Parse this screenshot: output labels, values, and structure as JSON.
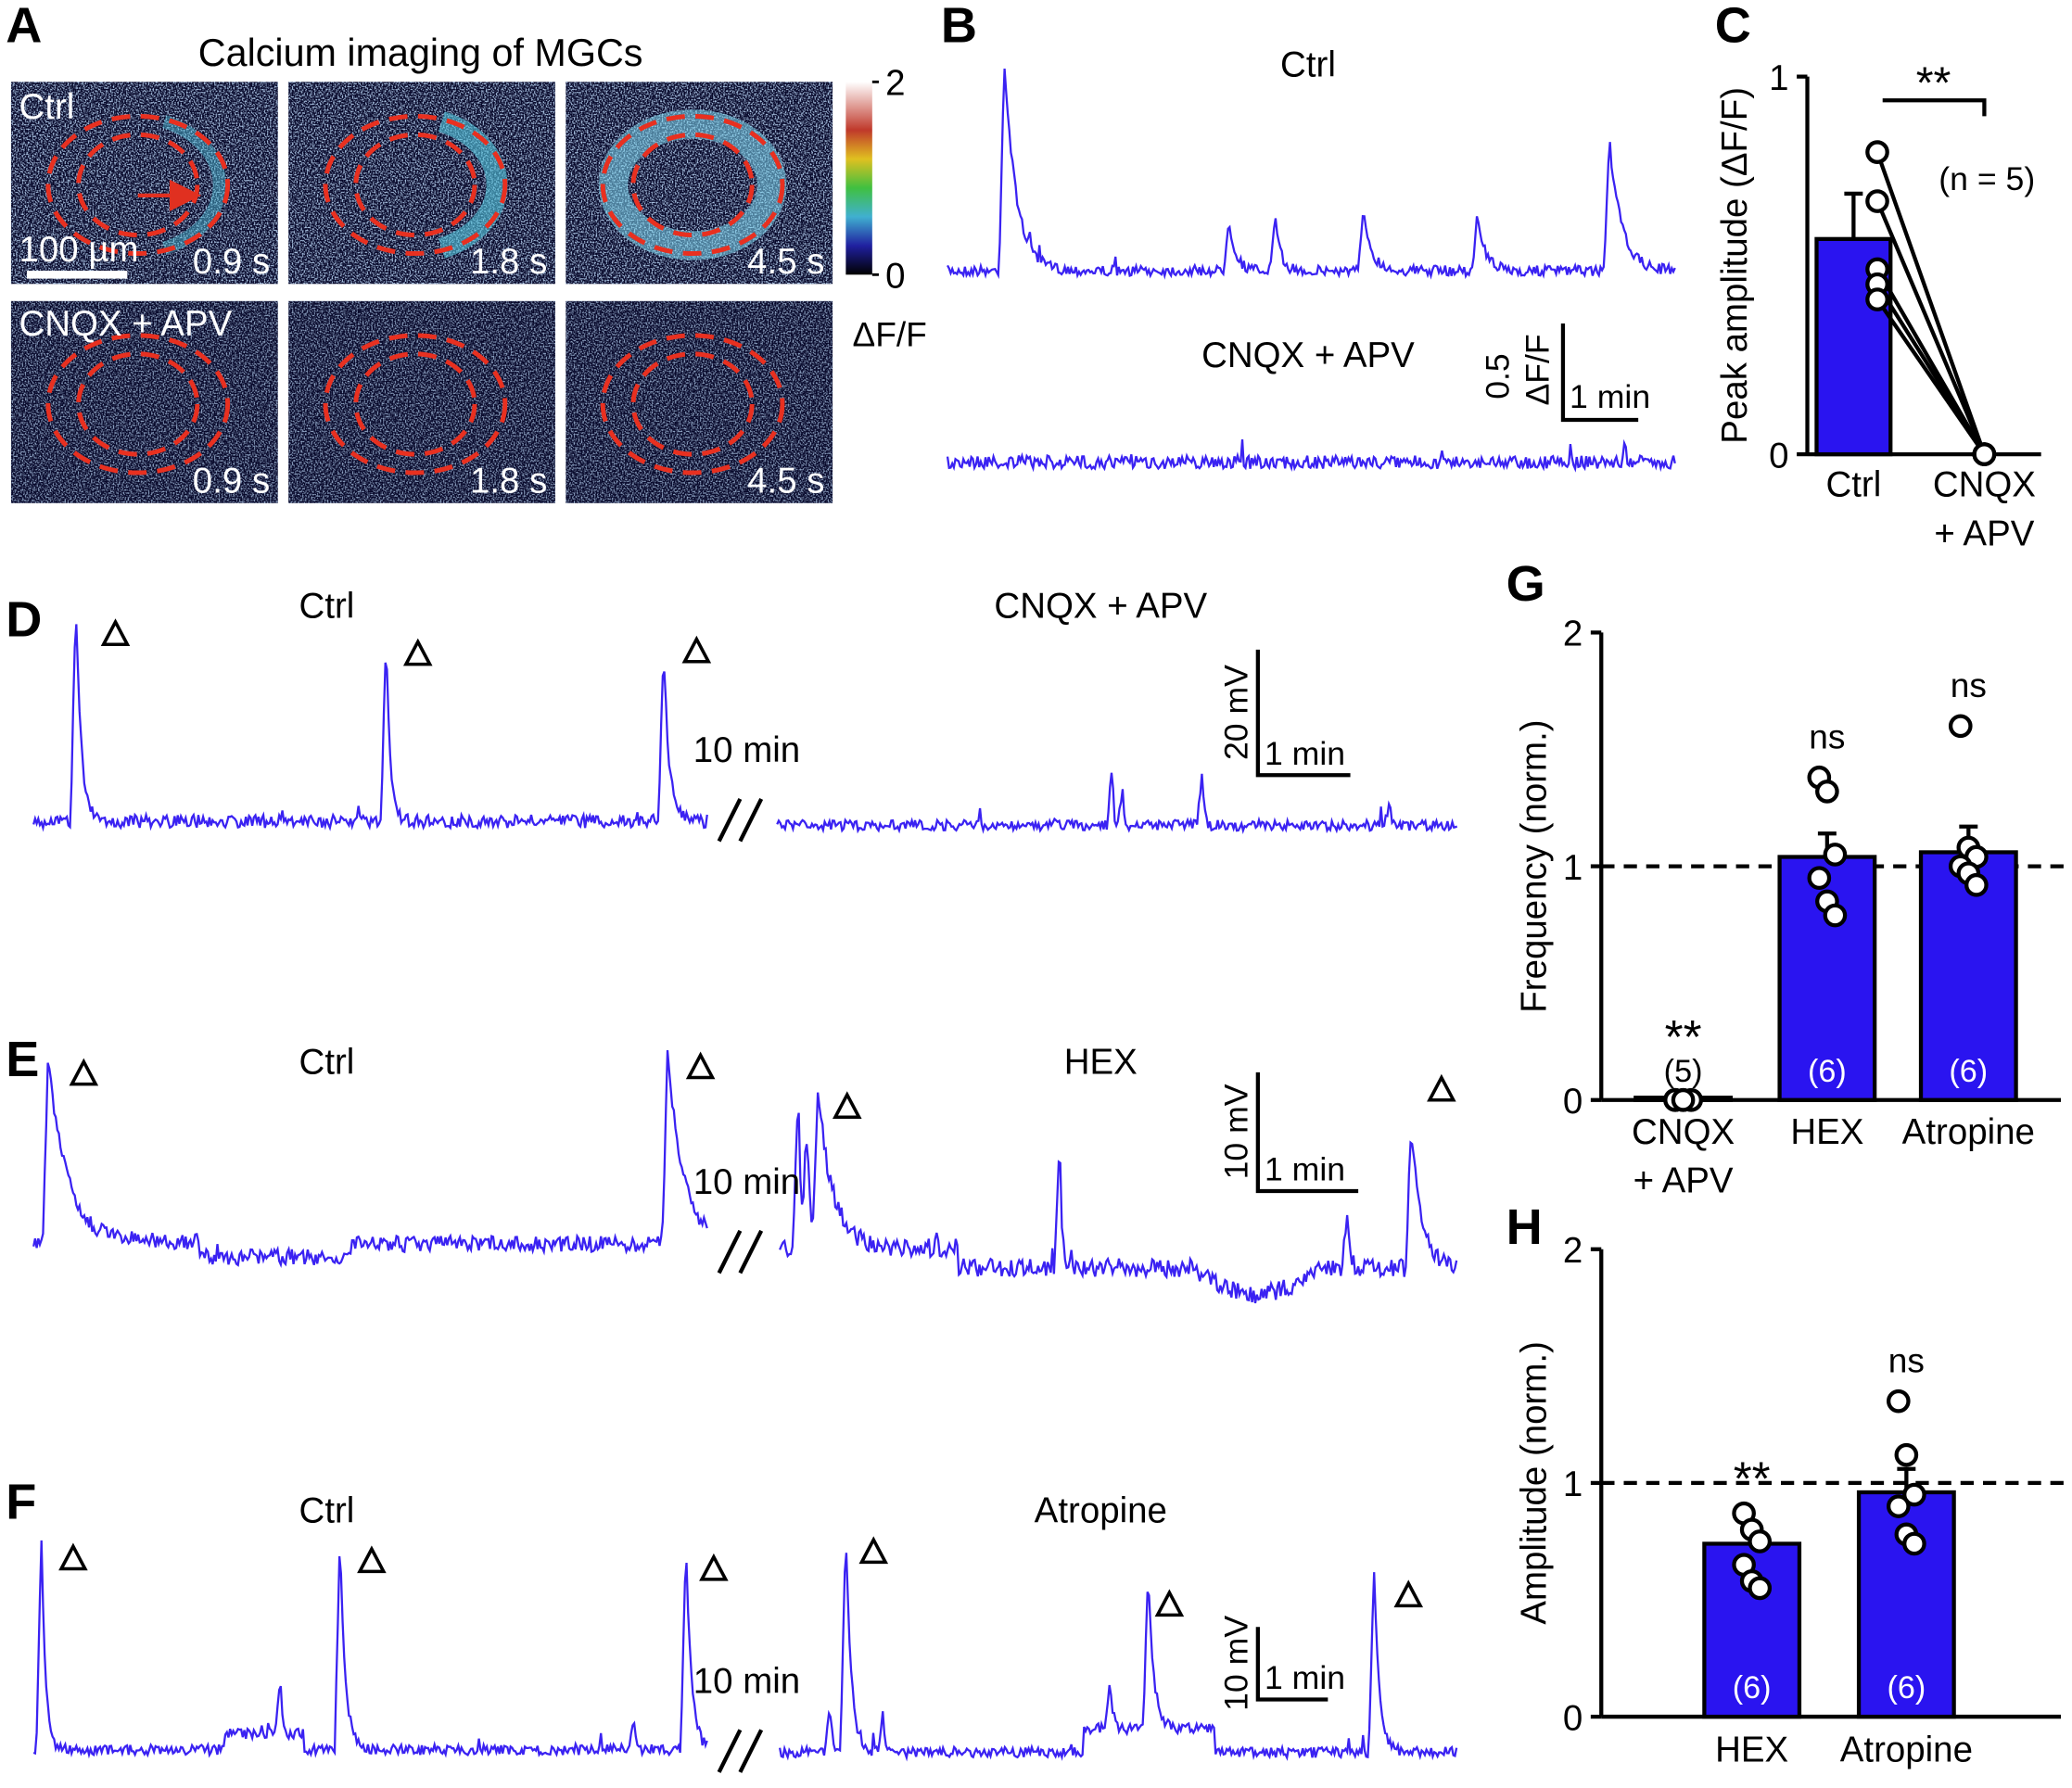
{
  "panel_a": {
    "label": "A",
    "title": "Calcium imaging of MGCs",
    "conditions": [
      "Ctrl",
      "CNQX + APV"
    ],
    "times": [
      "0.9 s",
      "1.8 s",
      "4.5 s"
    ],
    "scale_bar": "100 µm",
    "colorbar": {
      "ticks": [
        0,
        2
      ],
      "label": "ΔF/F"
    }
  },
  "panel_b": {
    "label": "B",
    "traces": [
      "Ctrl",
      "CNQX + APV"
    ],
    "scale_y": "0.5",
    "scale_y_unit": "ΔF/F",
    "scale_x": "1 min"
  },
  "panel_d": {
    "label": "D",
    "conditions": [
      "Ctrl",
      "CNQX + APV"
    ],
    "break": "10 min",
    "scale_y": "20 mV",
    "scale_x": "1 min"
  },
  "panel_e": {
    "label": "E",
    "conditions": [
      "Ctrl",
      "HEX"
    ],
    "break": "10 min",
    "scale_y": "10 mV",
    "scale_x": "1 min"
  },
  "panel_f": {
    "label": "F",
    "conditions": [
      "Ctrl",
      "Atropine"
    ],
    "break": "10 min",
    "scale_y": "10 mV",
    "scale_x": "1 min"
  },
  "chart_data": [
    {
      "label": "C",
      "type": "bar",
      "ylabel": "Peak amplitude (ΔF/F)",
      "categories": [
        [
          "Ctrl"
        ],
        [
          "CNQX",
          "+ APV"
        ]
      ],
      "values": [
        0.57,
        0
      ],
      "errors": [
        0.12,
        0
      ],
      "points": [
        [
          0.8,
          0.67,
          0.49,
          0.45,
          0.41
        ],
        [
          0,
          0,
          0,
          0,
          0
        ]
      ],
      "paired": true,
      "ylim": [
        0,
        1
      ],
      "yticks": [
        0,
        1
      ],
      "color": "#2a14f0",
      "significance": "**",
      "n_label": "(n = 5)"
    },
    {
      "label": "G",
      "type": "bar",
      "ylabel": "Frequency (norm.)",
      "categories": [
        [
          "CNQX",
          "+ APV"
        ],
        [
          "HEX"
        ],
        [
          "Atropine"
        ]
      ],
      "values": [
        0.01,
        1.04,
        1.06
      ],
      "errors": [
        0,
        0.1,
        0.11
      ],
      "points": [
        [
          0,
          0,
          0,
          0,
          0
        ],
        [
          1.38,
          1.32,
          1.05,
          0.95,
          0.85,
          0.79
        ],
        [
          1.6,
          1.08,
          1.04,
          1.0,
          0.97,
          0.92
        ]
      ],
      "ylim": [
        0,
        2
      ],
      "yticks": [
        0,
        1,
        2
      ],
      "color": "#2a14f0",
      "refline": 1,
      "significance": [
        "**",
        "ns",
        "ns"
      ],
      "n_labels": [
        "(5)",
        "(6)",
        "(6)"
      ]
    },
    {
      "label": "H",
      "type": "bar",
      "ylabel": "Amplitude (norm.)",
      "categories": [
        [
          "HEX"
        ],
        [
          "Atropine"
        ]
      ],
      "values": [
        0.74,
        0.96
      ],
      "errors": [
        0.04,
        0.1
      ],
      "points": [
        [
          0.87,
          0.8,
          0.75,
          0.65,
          0.58,
          0.55
        ],
        [
          1.35,
          1.12,
          0.95,
          0.9,
          0.78,
          0.74
        ]
      ],
      "ylim": [
        0,
        2
      ],
      "yticks": [
        0,
        1,
        2
      ],
      "color": "#2a14f0",
      "refline": 1,
      "significance": [
        "**",
        "ns"
      ],
      "n_labels": [
        "(6)",
        "(6)"
      ]
    }
  ]
}
